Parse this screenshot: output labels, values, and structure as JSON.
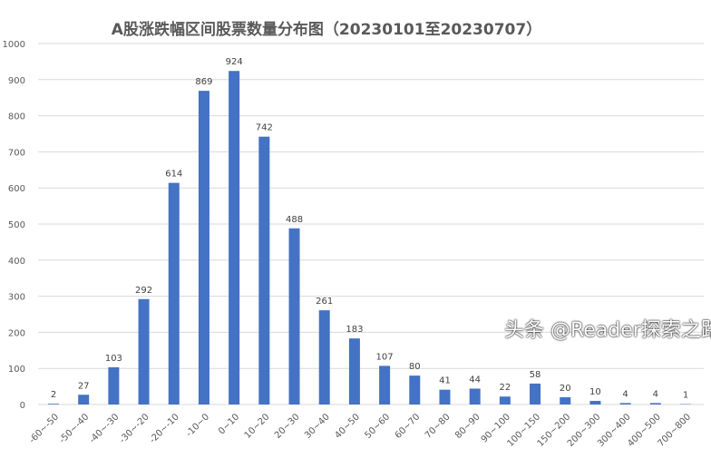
{
  "chart_data": {
    "type": "bar",
    "title": "A股涨跌幅区间股票数量分布图（20230101至20230707）",
    "categories": [
      "-60~-50",
      "-50~-40",
      "-40~-30",
      "-30~-20",
      "-20~-10",
      "-10~0",
      "0~10",
      "10~20",
      "20~30",
      "30~40",
      "40~50",
      "50~60",
      "60~70",
      "70~80",
      "80~90",
      "90~100",
      "100~150",
      "150~200",
      "200~300",
      "300~400",
      "400~500",
      "700~800"
    ],
    "values": [
      2,
      27,
      103,
      292,
      614,
      869,
      924,
      742,
      488,
      261,
      183,
      107,
      80,
      41,
      44,
      22,
      58,
      20,
      10,
      4,
      4,
      1
    ],
    "yticks": [
      0,
      100,
      200,
      300,
      400,
      500,
      600,
      700,
      800,
      900,
      1000
    ],
    "ylim": [
      0,
      1000
    ],
    "grid": true,
    "bar_color": "#4472C4",
    "xlabel": "",
    "ylabel": ""
  },
  "watermark": "头条 @Reader探索之路"
}
